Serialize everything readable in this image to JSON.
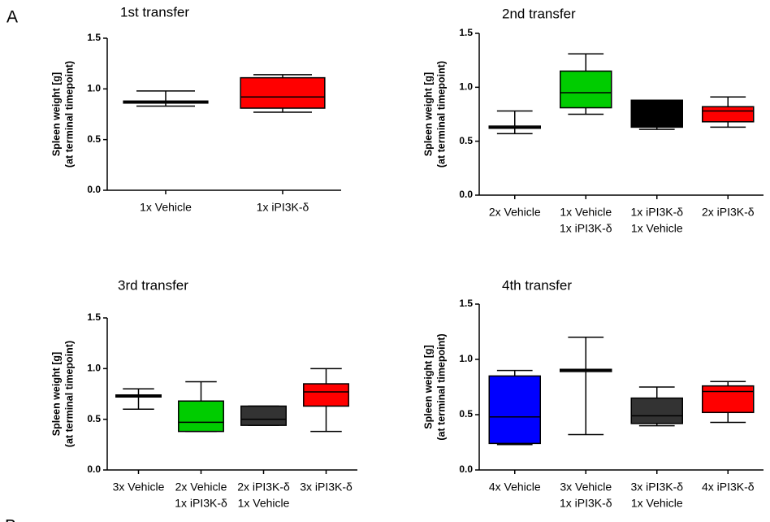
{
  "panel_labels": [
    "A",
    "B"
  ],
  "chart_data": [
    {
      "type": "box",
      "title": "1st transfer",
      "ylabel": [
        "Spleen weight [g]",
        "(at terminal timepoint)"
      ],
      "categories": [
        [
          "1x Vehicle"
        ],
        [
          "1x iPI3K-δ"
        ]
      ],
      "values": [
        {
          "min": 0.83,
          "q1": 0.86,
          "median": 0.87,
          "q3": 0.88,
          "max": 0.98
        },
        {
          "min": 0.77,
          "q1": 0.81,
          "median": 0.92,
          "q3": 1.11,
          "max": 1.14
        }
      ],
      "colors": [
        "#ffffff",
        "#ff0000"
      ],
      "ylim": [
        0,
        1.5
      ],
      "yticks": [
        {
          "value": 0,
          "label": "0.0"
        },
        0.5,
        {
          "value": 1,
          "label": "1.0"
        },
        1.5
      ]
    },
    {
      "type": "box",
      "title": "2nd transfer",
      "ylabel": [
        "Spleen weight [g]",
        "(at terminal timepoint)"
      ],
      "categories": [
        [
          "2x Vehicle"
        ],
        [
          "1x Vehicle",
          "1x iPI3K-δ"
        ],
        [
          "1x iPI3K-δ",
          "1x Vehicle"
        ],
        [
          "2x iPI3K-δ"
        ]
      ],
      "values": [
        {
          "min": 0.57,
          "q1": 0.62,
          "median": 0.63,
          "q3": 0.64,
          "max": 0.78
        },
        {
          "min": 0.75,
          "q1": 0.81,
          "median": 0.95,
          "q3": 1.15,
          "max": 1.31
        },
        {
          "min": 0.61,
          "q1": 0.63,
          "median": 0.75,
          "q3": 0.88,
          "max": 0.88
        },
        {
          "min": 0.63,
          "q1": 0.68,
          "median": 0.78,
          "q3": 0.82,
          "max": 0.91
        }
      ],
      "colors": [
        "#ffffff",
        "#00cc00",
        "#000000",
        "#ff0000"
      ],
      "ylim": [
        0,
        1.5
      ],
      "yticks": [
        {
          "value": 0,
          "label": "0.0"
        },
        0.5,
        {
          "value": 1,
          "label": "1.0"
        },
        1.5
      ]
    },
    {
      "type": "box",
      "title": "3rd transfer",
      "ylabel": [
        "Spleen weight [g]",
        "(at terminal timepoint)"
      ],
      "categories": [
        [
          "3x Vehicle"
        ],
        [
          "2x Vehicle",
          "1x iPI3K-δ"
        ],
        [
          "2x iPI3K-δ",
          "1x Vehicle"
        ],
        [
          "3x iPI3K-δ"
        ]
      ],
      "values": [
        {
          "min": 0.6,
          "q1": 0.72,
          "median": 0.73,
          "q3": 0.74,
          "max": 0.8
        },
        {
          "min": 0.38,
          "q1": 0.38,
          "median": 0.47,
          "q3": 0.68,
          "max": 0.87
        },
        {
          "min": 0.44,
          "q1": 0.44,
          "median": 0.5,
          "q3": 0.63,
          "max": 0.63
        },
        {
          "min": 0.38,
          "q1": 0.63,
          "median": 0.77,
          "q3": 0.85,
          "max": 1.0
        }
      ],
      "colors": [
        "#ffffff",
        "#00cc00",
        "#333333",
        "#ff0000"
      ],
      "ylim": [
        0,
        1.5
      ],
      "yticks": [
        {
          "value": 0,
          "label": "0.0"
        },
        0.5,
        {
          "value": 1,
          "label": "1.0"
        },
        1.5
      ]
    },
    {
      "type": "box",
      "title": "4th transfer",
      "ylabel": [
        "Spleen weight [g]",
        "(at terminal timepoint)"
      ],
      "categories": [
        [
          "4x Vehicle"
        ],
        [
          "3x Vehicle",
          "1x iPI3K-δ"
        ],
        [
          "3x iPI3K-δ",
          "1x Vehicle"
        ],
        [
          "4x iPI3K-δ"
        ]
      ],
      "values": [
        {
          "min": 0.23,
          "q1": 0.24,
          "median": 0.48,
          "q3": 0.85,
          "max": 0.9
        },
        {
          "min": 0.32,
          "q1": 0.89,
          "median": 0.9,
          "q3": 0.91,
          "max": 1.2
        },
        {
          "min": 0.4,
          "q1": 0.42,
          "median": 0.49,
          "q3": 0.65,
          "max": 0.75
        },
        {
          "min": 0.43,
          "q1": 0.52,
          "median": 0.71,
          "q3": 0.76,
          "max": 0.8
        }
      ],
      "colors": [
        "#0000ff",
        "#ffffff",
        "#333333",
        "#ff0000"
      ],
      "ylim": [
        0,
        1.5
      ],
      "yticks": [
        {
          "value": 0,
          "label": "0.0"
        },
        0.5,
        {
          "value": 1,
          "label": "1.0"
        },
        1.5
      ]
    }
  ]
}
